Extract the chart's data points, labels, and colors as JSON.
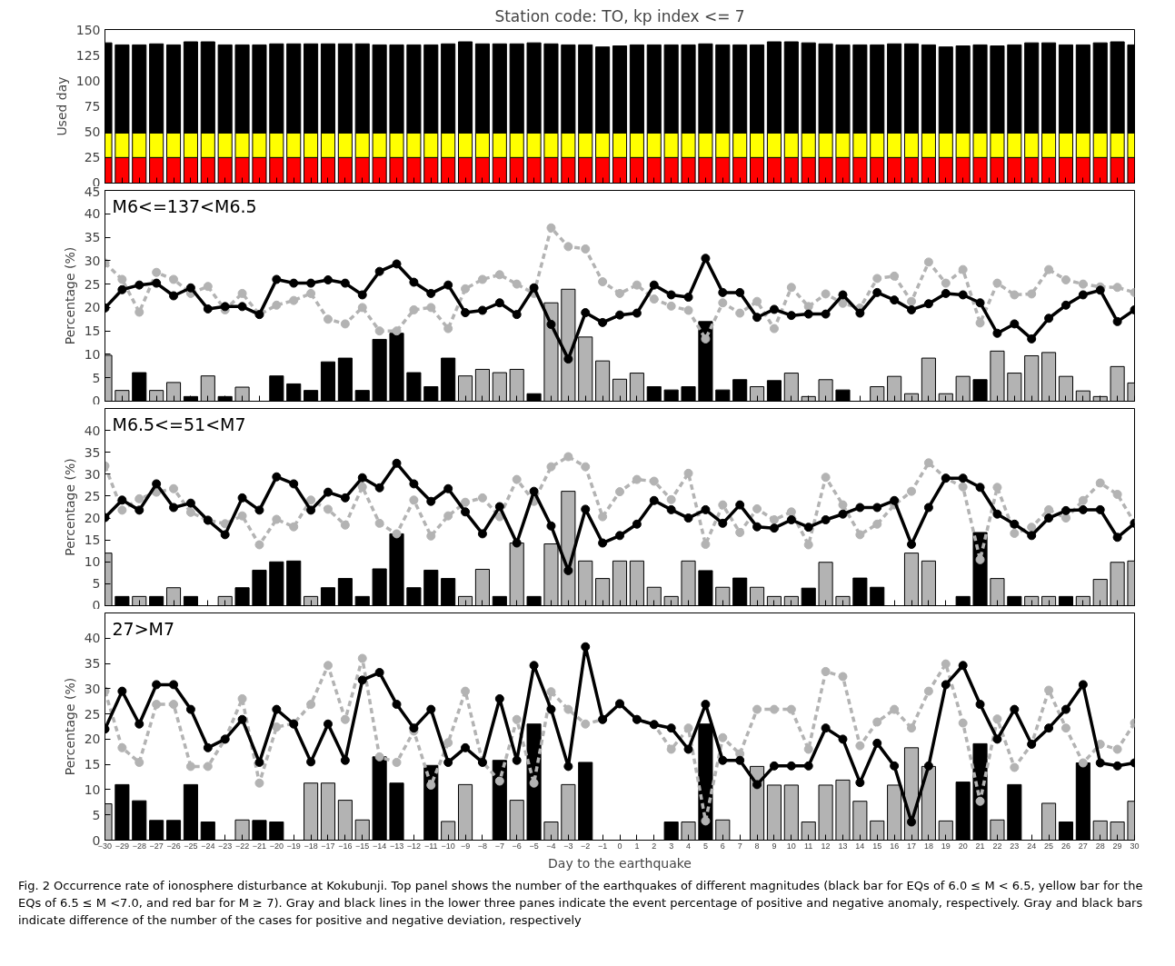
{
  "chart_data": [
    {
      "type": "bar",
      "title": "Station code: TO, kp index <= 7",
      "ylabel": "Used day",
      "stacked": true,
      "tick_labels": "y",
      "x": [
        -30,
        -29,
        -28,
        -27,
        -26,
        -25,
        -24,
        -23,
        -22,
        -21,
        -20,
        -19,
        -18,
        -17,
        -16,
        -15,
        -14,
        -13,
        -12,
        -11,
        -10,
        -9,
        -8,
        -7,
        -6,
        -5,
        -4,
        -3,
        -2,
        -1,
        0,
        1,
        2,
        3,
        4,
        5,
        6,
        7,
        8,
        9,
        10,
        11,
        12,
        13,
        14,
        15,
        16,
        17,
        18,
        19,
        20,
        21,
        22,
        23,
        24,
        25,
        26,
        27,
        28,
        29,
        30
      ],
      "xlim": [
        -30,
        30
      ],
      "xticks": [
        -30,
        -29,
        -28,
        -27,
        -26,
        -25,
        -24,
        -23,
        -22,
        -21,
        -20,
        -19,
        -18,
        -17,
        -16,
        -15,
        -14,
        -13,
        -12,
        -11,
        -10,
        -9,
        -8,
        -7,
        -6,
        -5,
        -4,
        -3,
        -2,
        -1,
        0,
        1,
        2,
        3,
        4,
        5,
        6,
        7,
        8,
        9,
        10,
        11,
        12,
        13,
        14,
        15,
        16,
        17,
        18,
        19,
        20,
        21,
        22,
        23,
        24,
        25,
        26,
        27,
        28,
        29,
        30
      ],
      "ylim": [
        0,
        150
      ],
      "yticks": [
        0,
        25,
        50,
        75,
        100,
        125,
        150
      ],
      "series": [
        {
          "color": "#ff0000",
          "values": [
            25,
            25,
            25,
            25,
            25,
            25,
            25,
            25,
            25,
            25,
            25,
            25,
            25,
            25,
            25,
            25,
            25,
            25,
            25,
            25,
            25,
            25,
            25,
            25,
            25,
            25,
            25,
            25,
            25,
            25,
            25,
            25,
            25,
            25,
            25,
            25,
            25,
            25,
            25,
            25,
            25,
            25,
            25,
            25,
            25,
            25,
            25,
            25,
            25,
            25,
            25,
            25,
            25,
            25,
            25,
            25,
            25,
            25,
            25,
            25,
            25
          ]
        },
        {
          "color": "#ffff00",
          "values": [
            24,
            24,
            24,
            24,
            24,
            24,
            24,
            24,
            24,
            24,
            24,
            24,
            24,
            24,
            24,
            24,
            24,
            24,
            24,
            24,
            24,
            24,
            24,
            24,
            24,
            24,
            24,
            24,
            24,
            24,
            24,
            24,
            24,
            24,
            24,
            24,
            24,
            24,
            24,
            24,
            24,
            24,
            24,
            24,
            24,
            24,
            24,
            24,
            24,
            24,
            24,
            24,
            24,
            24,
            24,
            24,
            24,
            24,
            24,
            24,
            24
          ]
        },
        {
          "color": "#000000",
          "values": [
            88,
            86,
            86,
            87,
            86,
            89,
            89,
            86,
            86,
            86,
            87,
            87,
            87,
            87,
            87,
            87,
            86,
            86,
            86,
            86,
            87,
            89,
            87,
            87,
            87,
            88,
            87,
            86,
            86,
            84,
            85,
            86,
            86,
            86,
            86,
            87,
            86,
            86,
            86,
            89,
            89,
            88,
            87,
            86,
            86,
            86,
            87,
            87,
            86,
            84,
            85,
            86,
            85,
            86,
            88,
            88,
            86,
            86,
            88,
            89,
            86
          ]
        }
      ]
    },
    {
      "type": "bar",
      "ylabel": "Percentage (%)",
      "tick_labels": "y",
      "annotations": [
        "M6<=137<M6.5"
      ],
      "x": [
        -30,
        -29,
        -28,
        -27,
        -26,
        -25,
        -24,
        -23,
        -22,
        -21,
        -20,
        -19,
        -18,
        -17,
        -16,
        -15,
        -14,
        -13,
        -12,
        -11,
        -10,
        -9,
        -8,
        -7,
        -6,
        -5,
        -4,
        -3,
        -2,
        -1,
        0,
        1,
        2,
        3,
        4,
        5,
        6,
        7,
        8,
        9,
        10,
        11,
        12,
        13,
        14,
        15,
        16,
        17,
        18,
        19,
        20,
        21,
        22,
        23,
        24,
        25,
        26,
        27,
        28,
        29,
        30
      ],
      "xlim": [
        -30,
        30
      ],
      "xticks": [
        -30,
        -29,
        -28,
        -27,
        -26,
        -25,
        -24,
        -23,
        -22,
        -21,
        -20,
        -19,
        -18,
        -17,
        -16,
        -15,
        -14,
        -13,
        -12,
        -11,
        -10,
        -9,
        -8,
        -7,
        -6,
        -5,
        -4,
        -3,
        -2,
        -1,
        0,
        1,
        2,
        3,
        4,
        5,
        6,
        7,
        8,
        9,
        10,
        11,
        12,
        13,
        14,
        15,
        16,
        17,
        18,
        19,
        20,
        21,
        22,
        23,
        24,
        25,
        26,
        27,
        28,
        29,
        30
      ],
      "ylim": [
        0,
        45
      ],
      "yticks": [
        0,
        5,
        10,
        15,
        20,
        25,
        30,
        35,
        40,
        45
      ],
      "series": [
        {
          "type": "bar",
          "values": [
            9.8,
            2.3,
            6.1,
            2.3,
            4,
            1,
            5.4,
            1,
            3,
            null,
            5.4,
            3.7,
            2.3,
            8.4,
            9.2,
            2.3,
            13.2,
            14.5,
            6.1,
            3.1,
            9.2,
            5.4,
            6.8,
            6.1,
            6.8,
            1.6,
            21,
            23.9,
            13.7,
            8.6,
            4.7,
            6,
            3.1,
            2.4,
            3.1,
            17,
            2.4,
            4.6,
            3.1,
            4.4,
            6,
            1,
            4.6,
            2.4,
            null,
            3.1,
            5.3,
            1.6,
            9.2,
            1.6,
            5.3,
            4.6,
            10.7,
            6,
            9.7,
            10.4,
            5.3,
            2.2,
            1,
            7.4,
            3.9
          ],
          "colors": [
            "#b3b3b3",
            "#b3b3b3",
            "#000000",
            "#b3b3b3",
            "#b3b3b3",
            "#000000",
            "#b3b3b3",
            "#000000",
            "#b3b3b3",
            "#b3b3b3",
            "#000000",
            "#000000",
            "#000000",
            "#000000",
            "#000000",
            "#000000",
            "#000000",
            "#000000",
            "#000000",
            "#000000",
            "#000000",
            "#b3b3b3",
            "#b3b3b3",
            "#b3b3b3",
            "#b3b3b3",
            "#000000",
            "#b3b3b3",
            "#b3b3b3",
            "#b3b3b3",
            "#b3b3b3",
            "#b3b3b3",
            "#b3b3b3",
            "#000000",
            "#000000",
            "#000000",
            "#000000",
            "#000000",
            "#000000",
            "#b3b3b3",
            "#000000",
            "#b3b3b3",
            "#b3b3b3",
            "#b3b3b3",
            "#000000",
            "#b3b3b3",
            "#b3b3b3",
            "#b3b3b3",
            "#b3b3b3",
            "#b3b3b3",
            "#b3b3b3",
            "#b3b3b3",
            "#000000",
            "#b3b3b3",
            "#b3b3b3",
            "#b3b3b3",
            "#b3b3b3",
            "#b3b3b3",
            "#b3b3b3",
            "#b3b3b3",
            "#b3b3b3",
            "#b3b3b3"
          ]
        },
        {
          "type": "line",
          "color": "#b3b3b3",
          "line_style": "dashed",
          "marker": "circle",
          "values": [
            29.5,
            26,
            19,
            27.5,
            26,
            23,
            24.5,
            19.5,
            23,
            18.5,
            20.5,
            21.5,
            23,
            17.5,
            16.5,
            20,
            15,
            15,
            19.5,
            20,
            15.5,
            24,
            26,
            27,
            25,
            23,
            37,
            33,
            32.5,
            25.5,
            23,
            24.8,
            21.8,
            20.3,
            19.4,
            13.3,
            21,
            18.8,
            21.3,
            15.5,
            24.3,
            20.2,
            22.9,
            20.9,
            19.9,
            26.2,
            26.7,
            21.3,
            29.7,
            25.2,
            28.1,
            16.7,
            25.2,
            22.7,
            22.9,
            28.1,
            25.9,
            25,
            24.4,
            24.3,
            23.2
          ]
        },
        {
          "type": "line",
          "color": "#000000",
          "line_style": "solid",
          "marker": "circle",
          "values": [
            19.9,
            23.8,
            24.8,
            25.2,
            22.5,
            24.2,
            19.7,
            20.2,
            20.2,
            18.5,
            26,
            25.2,
            25.2,
            25.9,
            25.2,
            22.7,
            27.7,
            29.3,
            25.4,
            23,
            24.8,
            18.9,
            19.4,
            21,
            18.5,
            24.2,
            16.4,
            9,
            18.9,
            16.8,
            18.4,
            18.8,
            24.8,
            22.7,
            22.2,
            30.5,
            23.2,
            23.2,
            17.9,
            19.6,
            18.3,
            18.6,
            18.6,
            22.7,
            18.8,
            23.2,
            21.6,
            19.5,
            20.8,
            23,
            22.7,
            21,
            14.5,
            16.5,
            13.3,
            17.7,
            20.5,
            22.7,
            23.7,
            17,
            19.5
          ]
        }
      ]
    },
    {
      "type": "bar",
      "ylabel": "Percentage (%)",
      "tick_labels": "y",
      "annotations": [
        "M6.5<=51<M7"
      ],
      "x": [
        -30,
        -29,
        -28,
        -27,
        -26,
        -25,
        -24,
        -23,
        -22,
        -21,
        -20,
        -19,
        -18,
        -17,
        -16,
        -15,
        -14,
        -13,
        -12,
        -11,
        -10,
        -9,
        -8,
        -7,
        -6,
        -5,
        -4,
        -3,
        -2,
        -1,
        0,
        1,
        2,
        3,
        4,
        5,
        6,
        7,
        8,
        9,
        10,
        11,
        12,
        13,
        14,
        15,
        16,
        17,
        18,
        19,
        20,
        21,
        22,
        23,
        24,
        25,
        26,
        27,
        28,
        29,
        30
      ],
      "xlim": [
        -30,
        30
      ],
      "xticks": [
        -30,
        -29,
        -28,
        -27,
        -26,
        -25,
        -24,
        -23,
        -22,
        -21,
        -20,
        -19,
        -18,
        -17,
        -16,
        -15,
        -14,
        -13,
        -12,
        -11,
        -10,
        -9,
        -8,
        -7,
        -6,
        -5,
        -4,
        -3,
        -2,
        -1,
        0,
        1,
        2,
        3,
        4,
        5,
        6,
        7,
        8,
        9,
        10,
        11,
        12,
        13,
        14,
        15,
        16,
        17,
        18,
        19,
        20,
        21,
        22,
        23,
        24,
        25,
        26,
        27,
        28,
        29,
        30
      ],
      "ylim": [
        0,
        45
      ],
      "yticks": [
        0,
        5,
        10,
        15,
        20,
        25,
        30,
        35,
        40
      ],
      "series": [
        {
          "type": "bar",
          "values": [
            12,
            2.1,
            2.1,
            2.1,
            4.1,
            2.1,
            null,
            2.1,
            4.1,
            8.1,
            10,
            10.2,
            2.1,
            4.1,
            6.2,
            2.1,
            8.4,
            16.4,
            4.1,
            8.1,
            6.2,
            2.1,
            8.3,
            2.1,
            14.3,
            2.1,
            14.1,
            26.1,
            10.2,
            6.2,
            10.2,
            10.2,
            4.2,
            2.1,
            10.2,
            8,
            4.2,
            6.3,
            4.2,
            2.1,
            2.1,
            4,
            9.9,
            2.1,
            6.3,
            4.2,
            null,
            12,
            10.2,
            null,
            2.1,
            16.7,
            6.2,
            2.1,
            2.1,
            2.1,
            2.1,
            2.1,
            6,
            9.9,
            10.2
          ],
          "colors": [
            "#b3b3b3",
            "#000000",
            "#b3b3b3",
            "#000000",
            "#b3b3b3",
            "#000000",
            "#b3b3b3",
            "#b3b3b3",
            "#000000",
            "#000000",
            "#000000",
            "#000000",
            "#b3b3b3",
            "#000000",
            "#000000",
            "#000000",
            "#000000",
            "#000000",
            "#000000",
            "#000000",
            "#000000",
            "#b3b3b3",
            "#b3b3b3",
            "#000000",
            "#b3b3b3",
            "#000000",
            "#b3b3b3",
            "#b3b3b3",
            "#b3b3b3",
            "#b3b3b3",
            "#b3b3b3",
            "#b3b3b3",
            "#b3b3b3",
            "#b3b3b3",
            "#b3b3b3",
            "#000000",
            "#b3b3b3",
            "#000000",
            "#b3b3b3",
            "#b3b3b3",
            "#b3b3b3",
            "#000000",
            "#b3b3b3",
            "#b3b3b3",
            "#000000",
            "#000000",
            "#b3b3b3",
            "#b3b3b3",
            "#b3b3b3",
            "#b3b3b3",
            "#000000",
            "#000000",
            "#b3b3b3",
            "#000000",
            "#b3b3b3",
            "#b3b3b3",
            "#000000",
            "#b3b3b3",
            "#b3b3b3",
            "#b3b3b3",
            "#b3b3b3"
          ]
        },
        {
          "type": "line",
          "color": "#b3b3b3",
          "line_style": "dashed",
          "marker": "circle",
          "values": [
            31.9,
            21.8,
            24.4,
            25.9,
            26.7,
            21.3,
            19.5,
            18.7,
            20.5,
            13.9,
            19.7,
            18,
            24.1,
            22,
            18.4,
            27.1,
            18.8,
            16.4,
            24.1,
            15.9,
            20.5,
            23.6,
            24.6,
            20.3,
            28.8,
            23.8,
            31.7,
            34,
            31.7,
            20.3,
            26,
            28.8,
            28.4,
            24.2,
            30.2,
            14,
            23,
            16.7,
            22.1,
            19.6,
            21.4,
            13.9,
            29.3,
            23,
            16.2,
            18.6,
            23,
            26.1,
            32.6,
            29.1,
            27.1,
            10.5,
            27,
            16.5,
            17.9,
            21.9,
            20,
            24,
            28,
            25.4,
            18.9
          ]
        },
        {
          "type": "line",
          "color": "#000000",
          "line_style": "solid",
          "marker": "circle",
          "values": [
            20.1,
            24.1,
            21.8,
            27.8,
            22.4,
            23.4,
            19.5,
            16.2,
            24.6,
            21.8,
            29.4,
            27.8,
            21.8,
            25.9,
            24.6,
            29.2,
            26.9,
            32.5,
            27.8,
            23.8,
            26.7,
            21.4,
            16.4,
            22.6,
            14.3,
            26.1,
            18.2,
            8,
            22,
            14.3,
            16,
            18.6,
            24,
            21.9,
            20,
            21.9,
            18.8,
            23,
            18,
            17.7,
            19.6,
            17.9,
            19.6,
            20.9,
            22.4,
            22.4,
            24,
            14,
            22.4,
            29.1,
            29.1,
            27,
            20.9,
            18.6,
            16,
            20,
            21.7,
            21.9,
            21.9,
            15.6,
            18.8
          ]
        }
      ]
    },
    {
      "type": "bar",
      "ylabel": "Percentage (%)",
      "xlabel": "Day to the earthquake",
      "annotations": [
        "27>M7",
        "Fig. 2  Occurrence rate of ionosphere disturbance at Kokubunji. Top panel shows the number of the earthquakes of different magnitudes (black bar for EQs of 6.0 ≤ M < 6.5, yellow bar for the EQs of 6.5 ≤ M <7.0, and red bar for M ≥ 7). Gray and black lines in the lower three panes indicate the event percentage of positive and negative anomaly, respectively. Gray and black bars indicate difference of the number of the cases for positive and negative deviation, respectively"
      ],
      "x": [
        -30,
        -29,
        -28,
        -27,
        -26,
        -25,
        -24,
        -23,
        -22,
        -21,
        -20,
        -19,
        -18,
        -17,
        -16,
        -15,
        -14,
        -13,
        -12,
        -11,
        -10,
        -9,
        -8,
        -7,
        -6,
        -5,
        -4,
        -3,
        -2,
        -1,
        0,
        1,
        2,
        3,
        4,
        5,
        6,
        7,
        8,
        9,
        10,
        11,
        12,
        13,
        14,
        15,
        16,
        17,
        18,
        19,
        20,
        21,
        22,
        23,
        24,
        25,
        26,
        27,
        28,
        29,
        30
      ],
      "xlim": [
        -30,
        30
      ],
      "xticks": [
        -30,
        -29,
        -28,
        -27,
        -26,
        -25,
        -24,
        -23,
        -22,
        -21,
        -20,
        -19,
        -18,
        -17,
        -16,
        -15,
        -14,
        -13,
        -12,
        -11,
        -10,
        -9,
        -8,
        -7,
        -6,
        -5,
        -4,
        -3,
        -2,
        -1,
        0,
        1,
        2,
        3,
        4,
        5,
        6,
        7,
        8,
        9,
        10,
        11,
        12,
        13,
        14,
        15,
        16,
        17,
        18,
        19,
        20,
        21,
        22,
        23,
        24,
        25,
        26,
        27,
        28,
        29,
        30
      ],
      "ylim": [
        0,
        45
      ],
      "yticks": [
        0,
        5,
        10,
        15,
        20,
        25,
        30,
        35,
        40
      ],
      "series": [
        {
          "type": "bar",
          "values": [
            7.2,
            11,
            7.8,
            3.9,
            3.9,
            11,
            3.6,
            null,
            4,
            3.9,
            3.6,
            null,
            11.3,
            11.3,
            7.9,
            4,
            16.5,
            11.3,
            null,
            14.8,
            3.7,
            11,
            null,
            15.8,
            7.9,
            23,
            3.6,
            11,
            15.4,
            null,
            null,
            null,
            null,
            3.6,
            3.6,
            23,
            4,
            null,
            14.6,
            10.9,
            10.9,
            3.6,
            10.9,
            11.9,
            7.7,
            3.8,
            10.9,
            18.3,
            14.6,
            3.8,
            11.5,
            19.1,
            4,
            11,
            null,
            7.3,
            3.6,
            15.3,
            3.8,
            3.6,
            7.7
          ],
          "colors": [
            "#b3b3b3",
            "#000000",
            "#000000",
            "#000000",
            "#000000",
            "#000000",
            "#000000",
            "#b3b3b3",
            "#b3b3b3",
            "#000000",
            "#000000",
            "#b3b3b3",
            "#b3b3b3",
            "#b3b3b3",
            "#b3b3b3",
            "#b3b3b3",
            "#000000",
            "#000000",
            "#b3b3b3",
            "#000000",
            "#b3b3b3",
            "#b3b3b3",
            "#b3b3b3",
            "#000000",
            "#b3b3b3",
            "#000000",
            "#b3b3b3",
            "#b3b3b3",
            "#000000",
            "#b3b3b3",
            "#b3b3b3",
            "#b3b3b3",
            "#b3b3b3",
            "#000000",
            "#b3b3b3",
            "#000000",
            "#b3b3b3",
            "#b3b3b3",
            "#b3b3b3",
            "#b3b3b3",
            "#b3b3b3",
            "#b3b3b3",
            "#b3b3b3",
            "#b3b3b3",
            "#b3b3b3",
            "#b3b3b3",
            "#b3b3b3",
            "#b3b3b3",
            "#b3b3b3",
            "#b3b3b3",
            "#000000",
            "#000000",
            "#b3b3b3",
            "#000000",
            "#b3b3b3",
            "#b3b3b3",
            "#000000",
            "#000000",
            "#b3b3b3",
            "#b3b3b3",
            "#b3b3b3"
          ]
        },
        {
          "type": "line",
          "color": "#b3b3b3",
          "line_style": "dashed",
          "marker": "circle",
          "values": [
            29.5,
            18.3,
            15.4,
            26.9,
            26.9,
            14.6,
            14.6,
            20,
            28,
            11.3,
            22.4,
            23.1,
            26.9,
            34.6,
            23.9,
            36,
            16.5,
            15.4,
            21.6,
            10.9,
            19.3,
            29.5,
            15.5,
            11.7,
            23.9,
            11.3,
            29.4,
            25.9,
            23,
            23.9,
            27.1,
            23.9,
            22.9,
            18,
            22.2,
            3.8,
            20.3,
            17.1,
            25.9,
            25.9,
            25.9,
            18,
            33.4,
            32.4,
            18.7,
            23.4,
            25.9,
            22.2,
            29.5,
            34.9,
            23.2,
            7.7,
            24,
            14.4,
            19,
            29.7,
            22.2,
            15.3,
            19,
            18,
            23.2
          ]
        },
        {
          "type": "line",
          "color": "#000000",
          "line_style": "solid",
          "marker": "circle",
          "values": [
            22,
            29.5,
            23,
            30.8,
            30.8,
            25.9,
            18.3,
            20,
            23.9,
            15.4,
            25.9,
            23,
            15.5,
            23,
            15.8,
            31.7,
            33.2,
            26.9,
            22.2,
            25.9,
            15.4,
            18.3,
            15.4,
            28,
            15.8,
            34.6,
            25.9,
            14.6,
            38.3,
            23.9,
            27,
            23.9,
            22.9,
            22.2,
            18,
            26.9,
            15.8,
            15.8,
            11,
            14.7,
            14.7,
            14.7,
            22.2,
            20,
            11.4,
            19.2,
            14.7,
            3.6,
            14.7,
            30.8,
            34.6,
            26.9,
            20,
            25.9,
            19,
            22.2,
            25.9,
            30.8,
            15.3,
            14.7,
            15.3
          ]
        }
      ]
    }
  ]
}
